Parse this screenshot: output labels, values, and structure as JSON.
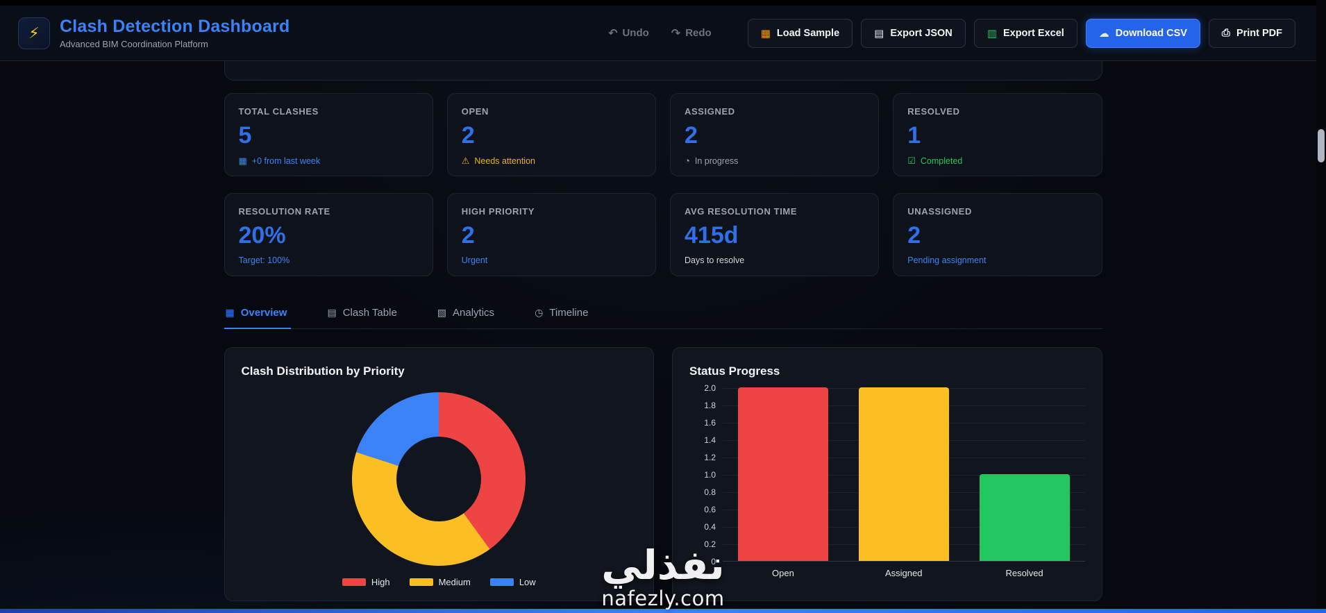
{
  "header": {
    "title": "Clash Detection Dashboard",
    "subtitle": "Advanced BIM Coordination Platform",
    "logo_icon": "⚡",
    "undo_label": "Undo",
    "redo_label": "Redo",
    "buttons": {
      "load_sample": "Load Sample",
      "export_json": "Export JSON",
      "export_excel": "Export Excel",
      "download_csv": "Download CSV",
      "print_pdf": "Print PDF"
    },
    "icons": {
      "undo": "↶",
      "redo": "↷",
      "load_sample": "▦",
      "export_json": "▤",
      "export_excel": "▥",
      "download_csv": "☁",
      "print_pdf": "⎙"
    }
  },
  "stats": [
    {
      "label": "TOTAL CLASHES",
      "value": "5",
      "icon": "▦",
      "sub": "+0 from last week"
    },
    {
      "label": "OPEN",
      "value": "2",
      "icon": "⚠",
      "sub": "Needs attention"
    },
    {
      "label": "ASSIGNED",
      "value": "2",
      "icon": "◔",
      "sub": "In progress"
    },
    {
      "label": "RESOLVED",
      "value": "1",
      "icon": "☑",
      "sub": "Completed"
    },
    {
      "label": "RESOLUTION RATE",
      "value": "20%",
      "icon": "",
      "sub": "Target: 100%"
    },
    {
      "label": "HIGH PRIORITY",
      "value": "2",
      "icon": "",
      "sub": "Urgent"
    },
    {
      "label": "AVG RESOLUTION TIME",
      "value": "415d",
      "icon": "",
      "sub": "Days to resolve"
    },
    {
      "label": "UNASSIGNED",
      "value": "2",
      "icon": "",
      "sub": "Pending assignment"
    }
  ],
  "tabs": [
    {
      "label": "Overview",
      "icon": "▦"
    },
    {
      "label": "Clash Table",
      "icon": "▤"
    },
    {
      "label": "Analytics",
      "icon": "▧"
    },
    {
      "label": "Timeline",
      "icon": "◷"
    }
  ],
  "chart_data": [
    {
      "type": "pie",
      "donut": true,
      "title": "Clash Distribution by Priority",
      "labels": [
        "High",
        "Medium",
        "Low"
      ],
      "values": [
        2,
        2,
        1
      ],
      "colors": [
        "#ef4444",
        "#fbbf24",
        "#3b82f6"
      ],
      "legend_position": "bottom"
    },
    {
      "type": "bar",
      "title": "Status Progress",
      "categories": [
        "Open",
        "Assigned",
        "Resolved"
      ],
      "values": [
        2,
        2,
        1
      ],
      "colors": [
        "#ef4444",
        "#fbbf24",
        "#22c55e"
      ],
      "ylim": [
        0,
        2
      ],
      "y_ticks": [
        "2.0",
        "1.8",
        "1.6",
        "1.4",
        "1.2",
        "1.0",
        "0.8",
        "0.6",
        "0.4",
        "0.2",
        "0"
      ],
      "grid": true,
      "legend_position": "none"
    }
  ],
  "watermark": {
    "line1": "نفذلي",
    "line2": "nafezly.com"
  }
}
